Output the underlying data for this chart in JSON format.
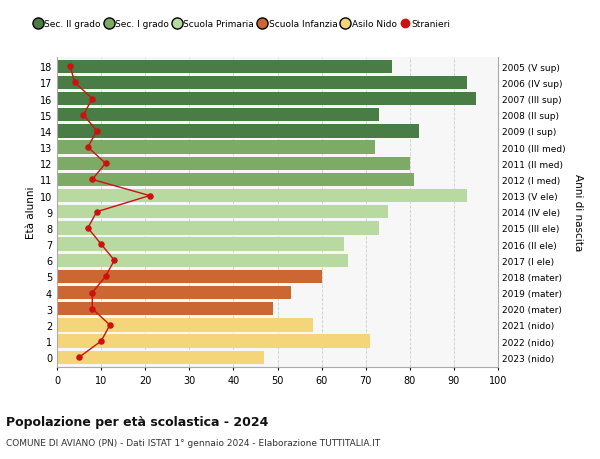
{
  "ages": [
    18,
    17,
    16,
    15,
    14,
    13,
    12,
    11,
    10,
    9,
    8,
    7,
    6,
    5,
    4,
    3,
    2,
    1,
    0
  ],
  "years": [
    "2005 (V sup)",
    "2006 (IV sup)",
    "2007 (III sup)",
    "2008 (II sup)",
    "2009 (I sup)",
    "2010 (III med)",
    "2011 (II med)",
    "2012 (I med)",
    "2013 (V ele)",
    "2014 (IV ele)",
    "2015 (III ele)",
    "2016 (II ele)",
    "2017 (I ele)",
    "2018 (mater)",
    "2019 (mater)",
    "2020 (mater)",
    "2021 (nido)",
    "2022 (nido)",
    "2023 (nido)"
  ],
  "bar_values": [
    76,
    93,
    95,
    73,
    82,
    72,
    80,
    81,
    93,
    75,
    73,
    65,
    66,
    60,
    53,
    49,
    58,
    71,
    47
  ],
  "bar_colors": [
    "#4a7c45",
    "#4a7c45",
    "#4a7c45",
    "#4a7c45",
    "#4a7c45",
    "#7dab65",
    "#7dab65",
    "#7dab65",
    "#b8d9a0",
    "#b8d9a0",
    "#b8d9a0",
    "#b8d9a0",
    "#b8d9a0",
    "#cc6633",
    "#cc6633",
    "#cc6633",
    "#f5d57a",
    "#f5d57a",
    "#f5d57a"
  ],
  "stranieri_values": [
    3,
    4,
    8,
    6,
    9,
    7,
    11,
    8,
    21,
    9,
    7,
    10,
    13,
    11,
    8,
    8,
    12,
    10,
    5
  ],
  "legend_labels": [
    "Sec. II grado",
    "Sec. I grado",
    "Scuola Primaria",
    "Scuola Infanzia",
    "Asilo Nido",
    "Stranieri"
  ],
  "legend_colors": [
    "#4a7c45",
    "#7dab65",
    "#b8d9a0",
    "#cc6633",
    "#f5d57a",
    "#cc1111"
  ],
  "ylabel_left": "Età alunni",
  "ylabel_right": "Anni di nascita",
  "title_bold": "Popolazione per età scolastica - 2024",
  "subtitle": "COMUNE DI AVIANO (PN) - Dati ISTAT 1° gennaio 2024 - Elaborazione TUTTITALIA.IT",
  "xlim": [
    0,
    100
  ],
  "background_color": "#ffffff",
  "bar_background": "#f7f7f7",
  "grid_color": "#cccccc",
  "stranieri_color": "#cc1111"
}
